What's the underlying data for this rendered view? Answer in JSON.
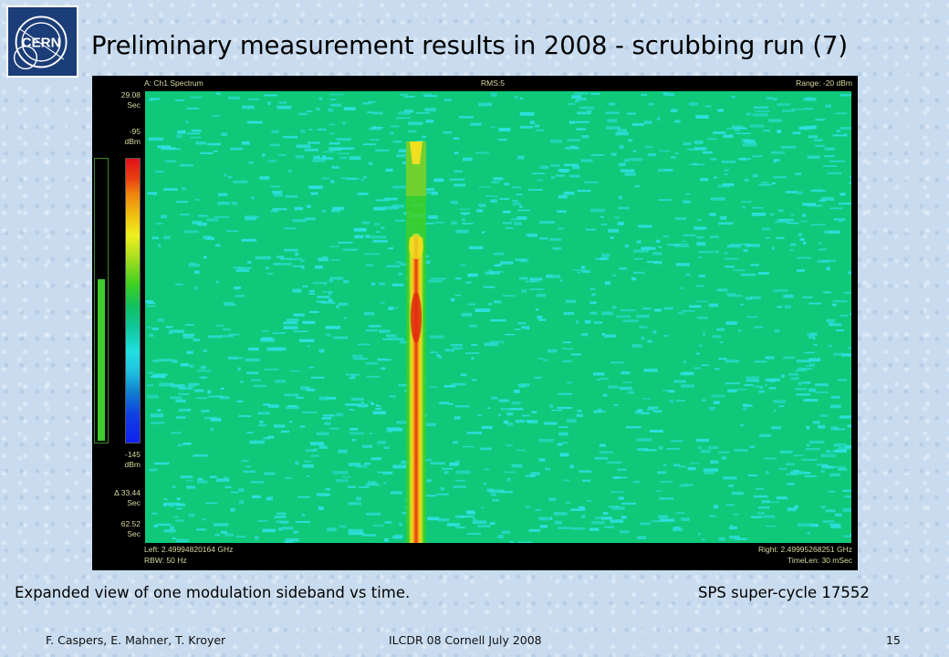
{
  "slide": {
    "logo_text": "CERN",
    "title": "Preliminary measurement results in 2008 - scrubbing run (7)"
  },
  "analyzer": {
    "channel": "A: Ch1 Spectrum",
    "rms": "RMS:5",
    "range": "Range: -20 dBm",
    "time_top_value": "29.08",
    "time_top_unit": "Sec",
    "scale_top_value": "-95",
    "scale_top_unit": "dBm",
    "scale_bottom_value": "-145",
    "scale_bottom_unit": "dBm",
    "delta_value": "Δ 33.44",
    "delta_unit": "Sec",
    "time_bottom_value": "62.52",
    "time_bottom_unit": "Sec",
    "left_freq": "Left: 2.49994820164 GHz",
    "right_freq": "Right: 2.49995268251 GHz",
    "rbw": "RBW: 50 Hz",
    "timelen": "TimeLen: 30 mSec",
    "colors": {
      "background": "#10c87a",
      "noise": "#2ee0e0",
      "peak_core": "#e02a10",
      "peak_edge": "#f0e020"
    }
  },
  "captions": {
    "left": "Expanded view of one modulation sideband vs time.",
    "right": "SPS super-cycle 17552"
  },
  "footer": {
    "authors": "F. Caspers, E. Mahner, T. Kroyer",
    "event": "ILCDR 08 Cornell July 2008",
    "page": "15"
  }
}
